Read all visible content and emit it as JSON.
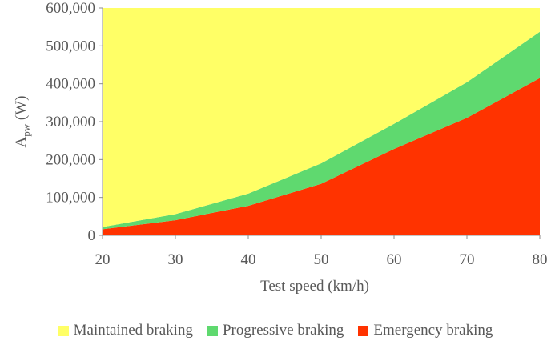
{
  "chart_data": {
    "type": "area",
    "stacked": true,
    "title": "",
    "xlabel": "Test speed (km/h)",
    "ylabel_main": "A",
    "ylabel_sub": "pw",
    "ylabel_unit": " (W)",
    "x": [
      20,
      30,
      40,
      50,
      60,
      70,
      80
    ],
    "xlim": [
      20,
      80
    ],
    "ylim": [
      0,
      600000
    ],
    "x_ticks": [
      "20",
      "30",
      "40",
      "50",
      "60",
      "70",
      "80"
    ],
    "y_ticks": [
      "0",
      "100,000",
      "200,000",
      "300,000",
      "400,000",
      "500,000",
      "600,000"
    ],
    "series": [
      {
        "name": "Emergency braking",
        "color": "#ff3300",
        "values": [
          16000,
          40000,
          78000,
          136000,
          228000,
          310000,
          415000
        ]
      },
      {
        "name": "Progressive braking",
        "color": "#5fd96f",
        "values": [
          6000,
          16000,
          32000,
          54000,
          66000,
          94000,
          122000
        ]
      },
      {
        "name": "Maintained braking",
        "color": "#ffff66",
        "values": [
          578000,
          544000,
          490000,
          410000,
          306000,
          196000,
          63000
        ]
      }
    ],
    "legend_order": [
      "Maintained braking",
      "Progressive braking",
      "Emergency braking"
    ],
    "legend_position": "bottom"
  }
}
